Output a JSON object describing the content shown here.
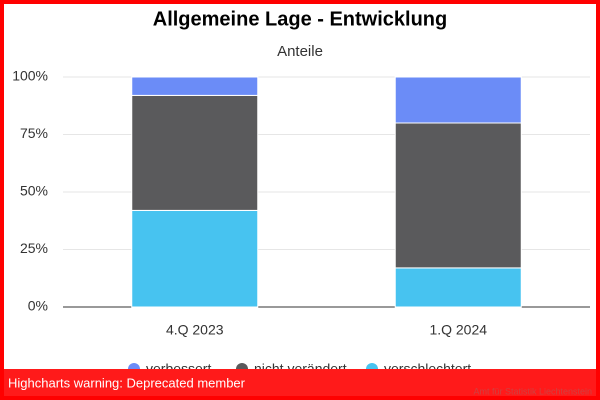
{
  "chart_data": {
    "type": "stacked_bar",
    "title": "Allgemeine Lage - Entwicklung",
    "subtitle": "Anteile",
    "categories": [
      "4.Q 2023",
      "1.Q 2024"
    ],
    "series": [
      {
        "name": "verbessert",
        "color": "#6b8cf7",
        "values": [
          8,
          20
        ]
      },
      {
        "name": "nicht verändert",
        "color": "#5a5a5c",
        "values": [
          50,
          63
        ]
      },
      {
        "name": "verschlechtert",
        "color": "#47c3f0",
        "values": [
          42,
          17
        ]
      }
    ],
    "ylim": [
      0,
      100
    ],
    "yticks": [
      {
        "value": 0,
        "label": "0%"
      },
      {
        "value": 25,
        "label": "25%"
      },
      {
        "value": 50,
        "label": "50%"
      },
      {
        "value": 75,
        "label": "75%"
      },
      {
        "value": 100,
        "label": "100%"
      }
    ],
    "grid": true,
    "legend": "bottom",
    "credits": "Amt für Statistik Liechtenstein",
    "warning": "Highcharts warning: Deprecated member"
  }
}
